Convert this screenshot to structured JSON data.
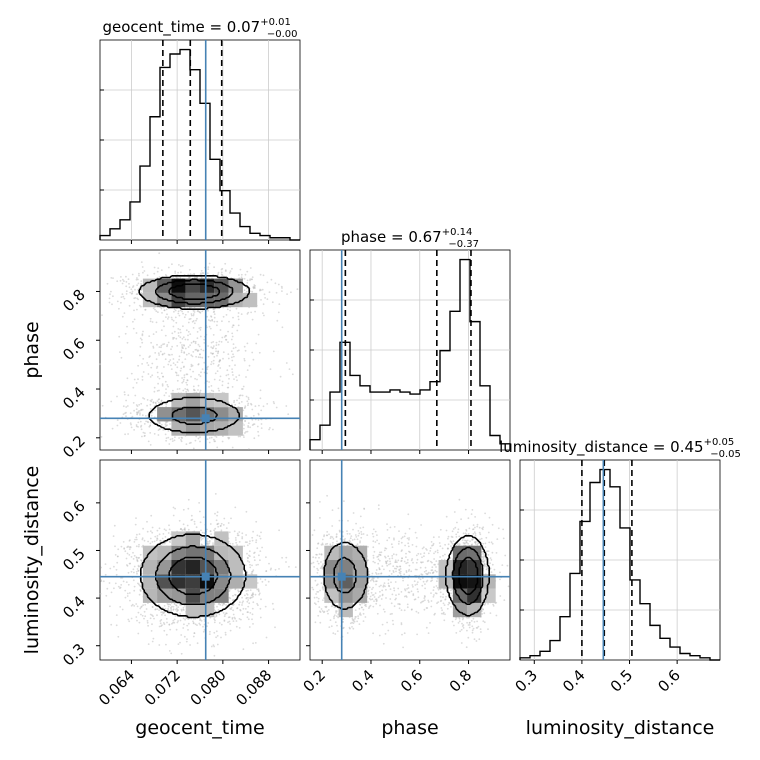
{
  "chart_data": {
    "type": "corner",
    "parameters": [
      "geocent_time",
      "phase",
      "luminosity_distance"
    ],
    "axis_labels": {
      "geocent_time": "geocent_time",
      "phase": "phase",
      "luminosity_distance": "luminosity_distance"
    },
    "ranges": {
      "geocent_time": [
        0.0585,
        0.0935
      ],
      "phase": [
        0.15,
        0.97
      ],
      "luminosity_distance": [
        0.27,
        0.69
      ]
    },
    "ticks": {
      "geocent_time": [
        0.064,
        0.072,
        0.08,
        0.088
      ],
      "phase": [
        0.2,
        0.4,
        0.6,
        0.8
      ],
      "phase_row": [
        0.2,
        0.4,
        0.6,
        0.8
      ],
      "luminosity_distance": [
        0.3,
        0.4,
        0.5,
        0.6
      ],
      "luminosity_distance_row": [
        0.3,
        0.4,
        0.5,
        0.6
      ]
    },
    "tick_labels": {
      "geocent_time": [
        "0.064",
        "0.072",
        "0.080",
        "0.088"
      ],
      "phase": [
        "0.2",
        "0.4",
        "0.6",
        "0.8"
      ],
      "luminosity_distance": [
        "0.3",
        "0.4",
        "0.5",
        "0.6"
      ]
    },
    "truths": {
      "geocent_time": 0.077,
      "phase": 0.28,
      "luminosity_distance": 0.445
    },
    "histograms": {
      "geocent_time": {
        "title_main": "geocent_time = 0.07",
        "title_sup": "+0.01",
        "title_sub": "−0.00",
        "quantiles": [
          0.0695,
          0.0743,
          0.0798
        ],
        "edges": [
          0.0585,
          0.06025,
          0.062,
          0.06375,
          0.0655,
          0.06725,
          0.069,
          0.07075,
          0.0725,
          0.07425,
          0.076,
          0.07775,
          0.0795,
          0.08125,
          0.083,
          0.08475,
          0.0865,
          0.08825,
          0.09,
          0.09175,
          0.0935
        ],
        "counts": [
          2,
          5,
          9,
          17,
          33,
          55,
          77,
          83,
          85,
          76,
          61,
          36,
          22,
          12,
          6,
          3,
          2,
          1,
          1,
          0
        ]
      },
      "phase": {
        "title_main": "phase = 0.67",
        "title_sup": "+0.14",
        "title_sub": "−0.37",
        "quantiles": [
          0.295,
          0.67,
          0.81
        ],
        "edges": [
          0.15,
          0.191,
          0.232,
          0.273,
          0.314,
          0.355,
          0.396,
          0.437,
          0.478,
          0.519,
          0.56,
          0.601,
          0.642,
          0.683,
          0.724,
          0.765,
          0.806,
          0.847,
          0.888,
          0.929,
          0.97
        ],
        "counts": [
          5,
          12,
          28,
          52,
          36,
          31,
          28,
          28,
          29,
          28,
          27,
          29,
          33,
          48,
          67,
          92,
          62,
          31,
          7,
          3
        ]
      },
      "luminosity_distance": {
        "title_main": "luminosity_distance = 0.45",
        "title_sup": "+0.05",
        "title_sub": "−0.05",
        "quantiles": [
          0.4,
          0.447,
          0.505
        ],
        "edges": [
          0.27,
          0.291,
          0.312,
          0.333,
          0.354,
          0.375,
          0.396,
          0.417,
          0.438,
          0.459,
          0.48,
          0.501,
          0.522,
          0.543,
          0.564,
          0.585,
          0.606,
          0.627,
          0.648,
          0.669,
          0.69
        ],
        "counts": [
          1,
          2,
          4,
          9,
          20,
          40,
          64,
          82,
          88,
          80,
          61,
          37,
          26,
          16,
          10,
          6,
          3,
          2,
          1,
          0
        ]
      }
    },
    "scatter_panels": [
      {
        "x": "geocent_time",
        "y": "phase",
        "x_center": 0.075,
        "x_sd": 0.0058,
        "y_modes": [
          [
            0.8,
            0.04,
            0.45
          ],
          [
            0.29,
            0.05,
            0.35
          ],
          [
            0.55,
            0.14,
            0.2
          ]
        ]
      },
      {
        "x": "geocent_time",
        "y": "luminosity_distance",
        "x_center": 0.0748,
        "x_sd": 0.0055,
        "y_center": 0.447,
        "y_sd": 0.052
      },
      {
        "x": "phase",
        "y": "luminosity_distance",
        "x_modes": [
          [
            0.8,
            0.05,
            0.45
          ],
          [
            0.29,
            0.06,
            0.35
          ],
          [
            0.55,
            0.14,
            0.2
          ]
        ],
        "y_center": 0.447,
        "y_sd": 0.05
      }
    ],
    "grid": true,
    "colors": {
      "truth": "#4682b4",
      "hist": "#000000",
      "quantile": "#000000",
      "points": "#bdbdbd",
      "grid": "#cccccc"
    }
  }
}
